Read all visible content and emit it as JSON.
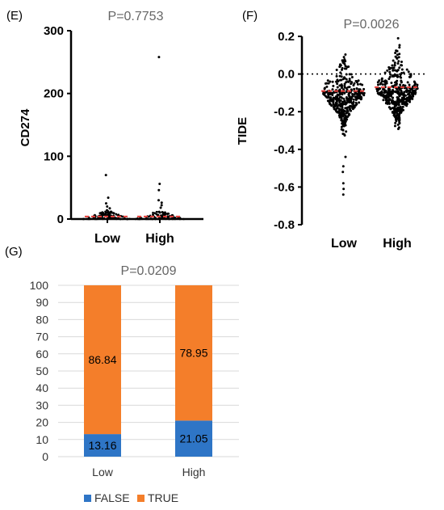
{
  "chart_data": [
    {
      "panel": "(E)",
      "type": "scatter",
      "subtitle": "P=0.7753",
      "ylabel": "CD274",
      "xlabel": "",
      "categories": [
        "Low",
        "High"
      ],
      "yticks": [
        0,
        100,
        200,
        300
      ],
      "ylim": [
        0,
        300
      ],
      "medians": [
        4,
        4
      ],
      "median_color": "#e8413c",
      "series": [
        {
          "category": "Low",
          "outliers": [
            70,
            34,
            25,
            20,
            17,
            14,
            12
          ]
        },
        {
          "category": "High",
          "outliers": [
            258,
            56,
            46,
            30,
            26,
            22,
            18
          ]
        }
      ]
    },
    {
      "panel": "(F)",
      "type": "scatter",
      "subtitle": "P=0.0026",
      "ylabel": "TIDE",
      "xlabel": "",
      "categories": [
        "Low",
        "High"
      ],
      "yticks": [
        0.2,
        0.0,
        -0.2,
        -0.4,
        -0.6,
        -0.8
      ],
      "ytick_labels": [
        "0.2",
        "0.0",
        "-0.2",
        "-0.4",
        "-0.6",
        "-0.8"
      ],
      "ylim": [
        -0.8,
        0.2
      ],
      "reference_line": 0.0,
      "medians": [
        -0.09,
        -0.07
      ],
      "median_color": "#e8413c",
      "series": [
        {
          "category": "Low",
          "range": [
            -0.64,
            0.16
          ],
          "outliers": [
            -0.44,
            -0.49,
            -0.52,
            -0.58,
            -0.61,
            -0.64
          ]
        },
        {
          "category": "High",
          "range": [
            -0.31,
            0.19
          ],
          "outliers": [
            0.19
          ]
        }
      ]
    },
    {
      "panel": "(G)",
      "type": "bar",
      "stacked": true,
      "subtitle": "P=0.0209",
      "categories": [
        "Low",
        "High"
      ],
      "ylim": [
        0,
        100
      ],
      "yticks": [
        0,
        10,
        20,
        30,
        40,
        50,
        60,
        70,
        80,
        90,
        100
      ],
      "series": [
        {
          "name": "FALSE",
          "color": "#2e75c6",
          "values": [
            13.16,
            21.05
          ],
          "labels": [
            "13.16",
            "21.05"
          ]
        },
        {
          "name": "TRUE",
          "color": "#f47e2a",
          "values": [
            86.84,
            78.95
          ],
          "labels": [
            "86.84",
            "78.95"
          ]
        }
      ],
      "legend": "bottom"
    }
  ]
}
